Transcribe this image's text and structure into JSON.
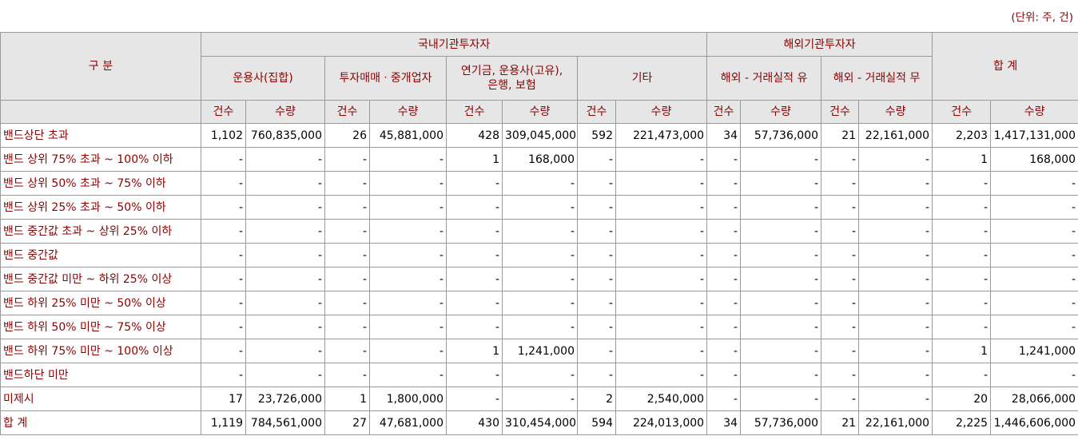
{
  "unit_note": "(단위: 주, 건)",
  "header": {
    "category": "구 분",
    "domestic": "국내기관투자자",
    "foreign": "해외기관투자자",
    "total": "합 계",
    "groups": [
      "운용사(집합)",
      "투자매매ㆍ중개업자",
      "연기금, 운용사(고유),\n은행, 보험",
      "기타",
      "해외 - 거래실적 유",
      "해외 - 거래실적 무"
    ],
    "count": "건수",
    "volume": "수량"
  },
  "rows": [
    {
      "label": "밴드상단 초과",
      "cells": [
        "1,102",
        "760,835,000",
        "26",
        "45,881,000",
        "428",
        "309,045,000",
        "592",
        "221,473,000",
        "34",
        "57,736,000",
        "21",
        "22,161,000",
        "2,203",
        "1,417,131,000"
      ]
    },
    {
      "label": "밴드 상위 75% 초과 ~ 100% 이하",
      "cells": [
        "-",
        "-",
        "-",
        "-",
        "1",
        "168,000",
        "-",
        "-",
        "-",
        "-",
        "-",
        "-",
        "1",
        "168,000"
      ]
    },
    {
      "label": "밴드 상위 50% 초과 ~ 75% 이하",
      "cells": [
        "-",
        "-",
        "-",
        "-",
        "-",
        "-",
        "-",
        "-",
        "-",
        "-",
        "-",
        "-",
        "-",
        "-"
      ]
    },
    {
      "label": "밴드 상위 25% 초과 ~ 50% 이하",
      "cells": [
        "-",
        "-",
        "-",
        "-",
        "-",
        "-",
        "-",
        "-",
        "-",
        "-",
        "-",
        "-",
        "-",
        "-"
      ]
    },
    {
      "label": "밴드 중간값 초과 ~ 상위 25% 이하",
      "cells": [
        "-",
        "-",
        "-",
        "-",
        "-",
        "-",
        "-",
        "-",
        "-",
        "-",
        "-",
        "-",
        "-",
        "-"
      ]
    },
    {
      "label": "밴드 중간값",
      "cells": [
        "-",
        "-",
        "-",
        "-",
        "-",
        "-",
        "-",
        "-",
        "-",
        "-",
        "-",
        "-",
        "-",
        "-"
      ]
    },
    {
      "label": "밴드 중간값 미만 ~ 하위 25% 이상",
      "cells": [
        "-",
        "-",
        "-",
        "-",
        "-",
        "-",
        "-",
        "-",
        "-",
        "-",
        "-",
        "-",
        "-",
        "-"
      ]
    },
    {
      "label": "밴드 하위 25% 미만 ~ 50% 이상",
      "cells": [
        "-",
        "-",
        "-",
        "-",
        "-",
        "-",
        "-",
        "-",
        "-",
        "-",
        "-",
        "-",
        "-",
        "-"
      ]
    },
    {
      "label": "밴드 하위 50% 미만 ~ 75% 이상",
      "cells": [
        "-",
        "-",
        "-",
        "-",
        "-",
        "-",
        "-",
        "-",
        "-",
        "-",
        "-",
        "-",
        "-",
        "-"
      ]
    },
    {
      "label": "밴드 하위 75% 미만 ~ 100% 이상",
      "cells": [
        "-",
        "-",
        "-",
        "-",
        "1",
        "1,241,000",
        "-",
        "-",
        "-",
        "-",
        "-",
        "-",
        "1",
        "1,241,000"
      ]
    },
    {
      "label": "밴드하단 미만",
      "cells": [
        "-",
        "-",
        "-",
        "-",
        "-",
        "-",
        "-",
        "-",
        "-",
        "-",
        "-",
        "-",
        "-",
        "-"
      ]
    },
    {
      "label": "미제시",
      "cells": [
        "17",
        "23,726,000",
        "1",
        "1,800,000",
        "-",
        "-",
        "2",
        "2,540,000",
        "-",
        "-",
        "-",
        "-",
        "20",
        "28,066,000"
      ]
    },
    {
      "label": "합 계",
      "cells": [
        "1,119",
        "784,561,000",
        "27",
        "47,681,000",
        "430",
        "310,454,000",
        "594",
        "224,013,000",
        "34",
        "57,736,000",
        "21",
        "22,161,000",
        "2,225",
        "1,446,606,000"
      ]
    }
  ]
}
